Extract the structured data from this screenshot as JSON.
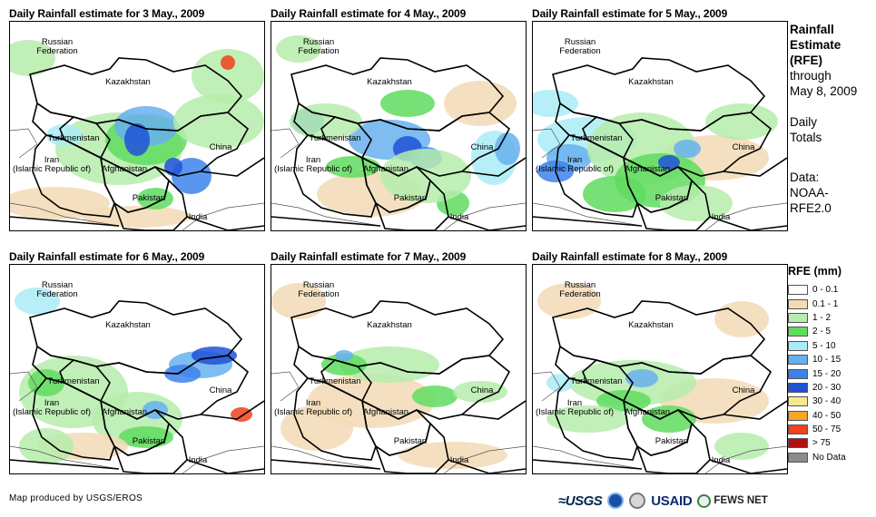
{
  "panels": [
    {
      "title": "Daily Rainfall estimate for 3 May., 2009",
      "rain": "p3"
    },
    {
      "title": "Daily Rainfall estimate for 4 May., 2009",
      "rain": "p4"
    },
    {
      "title": "Daily Rainfall estimate for 5 May., 2009",
      "rain": "p5"
    },
    {
      "title": "Daily Rainfall estimate for 6 May., 2009",
      "rain": "p6"
    },
    {
      "title": "Daily Rainfall estimate for 7 May., 2009",
      "rain": "p7"
    },
    {
      "title": "Daily Rainfall estimate for 8 May., 2009",
      "rain": "p8"
    }
  ],
  "map_labels": {
    "russia": "Russian\nFederation",
    "kazakhstan": "Kazakhstan",
    "turkmenistan": "Turkmenistan",
    "china": "China",
    "iran": "Iran\n(Islamic Republic of)",
    "afghanistan": "Afghanistan",
    "pakistan": "Pakistan",
    "india": "India"
  },
  "side_info": {
    "title_line1": "Rainfall",
    "title_line2": "Estimate",
    "title_line3": "(RFE)",
    "through1": "through",
    "through2": "May 8, 2009",
    "daily1": "Daily",
    "daily2": "Totals",
    "data1": "Data:",
    "data2": "NOAA-",
    "data3": "RFE2.0"
  },
  "legend": {
    "title": "RFE (mm)",
    "items": [
      {
        "label": "0 - 0.1",
        "color": "#ffffff"
      },
      {
        "label": "0.1 - 1",
        "color": "#f2dbb5"
      },
      {
        "label": "1 - 2",
        "color": "#b6ecac"
      },
      {
        "label": "2 - 5",
        "color": "#5fdc5f"
      },
      {
        "label": "5 - 10",
        "color": "#a9ecf7"
      },
      {
        "label": "10 - 15",
        "color": "#67b0ee"
      },
      {
        "label": "15 - 20",
        "color": "#3d82ec"
      },
      {
        "label": "20 - 30",
        "color": "#1e52d8"
      },
      {
        "label": "30 - 40",
        "color": "#f7e88c"
      },
      {
        "label": "40 - 50",
        "color": "#f5a62b"
      },
      {
        "label": "50 - 75",
        "color": "#f0421b"
      },
      {
        "label": "> 75",
        "color": "#b01010"
      },
      {
        "label": "No Data",
        "color": "#8c8c8c"
      }
    ]
  },
  "footer": {
    "credit": "Map produced by USGS/EROS",
    "logo_usgs": "≈USGS",
    "logo_usaid": "USAID",
    "logo_fews": "FEWS NET"
  }
}
